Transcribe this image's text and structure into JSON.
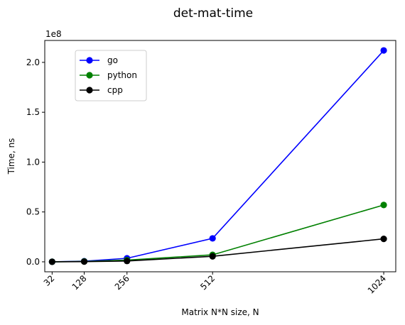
{
  "chart_data": {
    "type": "line",
    "title": "det-mat-time",
    "xlabel": "Matrix N*N size, N",
    "ylabel": "Time, ns",
    "y_offset_label": "1e8",
    "x": [
      32,
      128,
      256,
      512,
      1024
    ],
    "x_tick_labels": [
      "32",
      "128",
      "256",
      "512",
      "1024"
    ],
    "y_ticks": [
      0.0,
      0.5,
      1.0,
      1.5,
      2.0
    ],
    "y_tick_labels": [
      "0.0",
      "0.5",
      "1.0",
      "1.5",
      "2.0"
    ],
    "xlim": [
      10,
      1060
    ],
    "ylim": [
      -10000000,
      222000000
    ],
    "grid": false,
    "legend_position": "upper-left",
    "series": [
      {
        "name": "go",
        "color": "#0000ff",
        "values": [
          50000,
          600000,
          3500000,
          23500000,
          212000000
        ]
      },
      {
        "name": "python",
        "color": "#008000",
        "values": [
          30000,
          400000,
          1700000,
          7000000,
          57000000
        ]
      },
      {
        "name": "cpp",
        "color": "#000000",
        "values": [
          20000,
          200000,
          800000,
          5500000,
          23000000
        ]
      }
    ]
  }
}
